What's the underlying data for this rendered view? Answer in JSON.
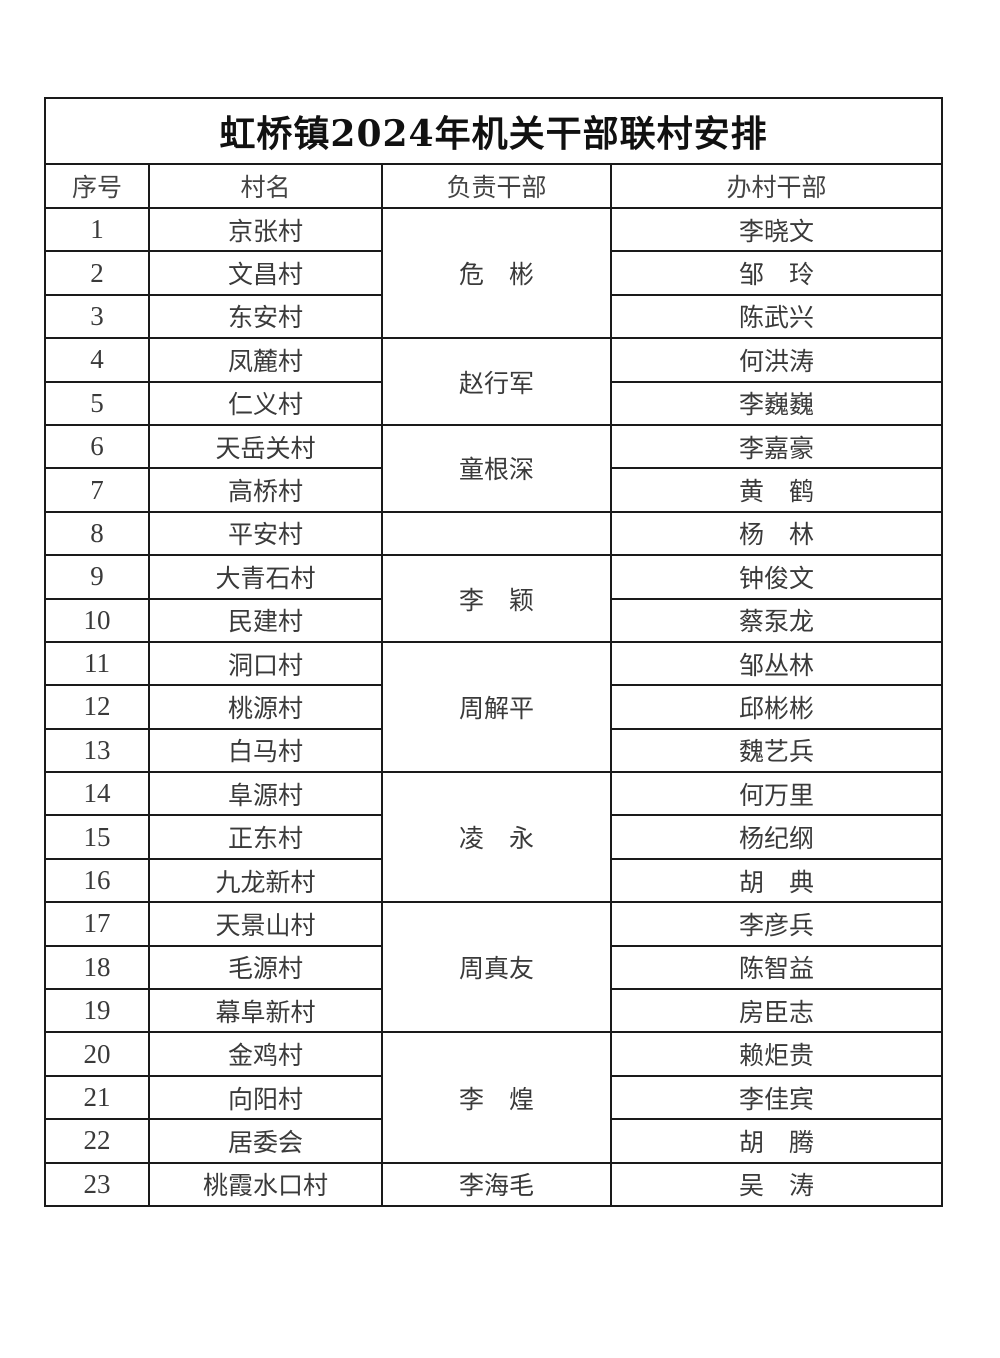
{
  "title": "虹桥镇2024年机关干部联村安排",
  "headers": [
    "序号",
    "村名",
    "负责干部",
    "办村干部"
  ],
  "rows": [
    {
      "no": "1",
      "village": "京张村",
      "staff": "李晓文"
    },
    {
      "no": "2",
      "village": "文昌村",
      "staff": "邹　玲"
    },
    {
      "no": "3",
      "village": "东安村",
      "staff": "陈武兴"
    },
    {
      "no": "4",
      "village": "凤麓村",
      "staff": "何洪涛"
    },
    {
      "no": "5",
      "village": "仁义村",
      "staff": "李巍巍"
    },
    {
      "no": "6",
      "village": "天岳关村",
      "staff": "李嘉豪"
    },
    {
      "no": "7",
      "village": "高桥村",
      "staff": "黄　鹤"
    },
    {
      "no": "8",
      "village": "平安村",
      "staff": "杨　林"
    },
    {
      "no": "9",
      "village": "大青石村",
      "staff": "钟俊文"
    },
    {
      "no": "10",
      "village": "民建村",
      "staff": "蔡泵龙"
    },
    {
      "no": "11",
      "village": "洞口村",
      "staff": "邹丛林"
    },
    {
      "no": "12",
      "village": "桃源村",
      "staff": "邱彬彬"
    },
    {
      "no": "13",
      "village": "白马村",
      "staff": "魏艺兵"
    },
    {
      "no": "14",
      "village": "阜源村",
      "staff": "何万里"
    },
    {
      "no": "15",
      "village": "正东村",
      "staff": "杨纪纲"
    },
    {
      "no": "16",
      "village": "九龙新村",
      "staff": "胡　典"
    },
    {
      "no": "17",
      "village": "天景山村",
      "staff": "李彦兵"
    },
    {
      "no": "18",
      "village": "毛源村",
      "staff": "陈智益"
    },
    {
      "no": "19",
      "village": "幕阜新村",
      "staff": "房臣志"
    },
    {
      "no": "20",
      "village": "金鸡村",
      "staff": "赖炬贵"
    },
    {
      "no": "21",
      "village": "向阳村",
      "staff": "李佳宾"
    },
    {
      "no": "22",
      "village": "居委会",
      "staff": "胡　腾"
    },
    {
      "no": "23",
      "village": "桃霞水口村",
      "staff": "吴　涛"
    }
  ],
  "leaders": [
    {
      "name": "危　彬",
      "span": 3
    },
    {
      "name": "赵行军",
      "span": 2
    },
    {
      "name": "童根深",
      "span": 2
    },
    {
      "name": "",
      "span": 1
    },
    {
      "name": "李　颖",
      "span": 2
    },
    {
      "name": "周解平",
      "span": 3
    },
    {
      "name": "凌　永",
      "span": 3
    },
    {
      "name": "周真友",
      "span": 3
    },
    {
      "name": "李　煌",
      "span": 3
    },
    {
      "name": "李海毛",
      "span": 1
    }
  ]
}
